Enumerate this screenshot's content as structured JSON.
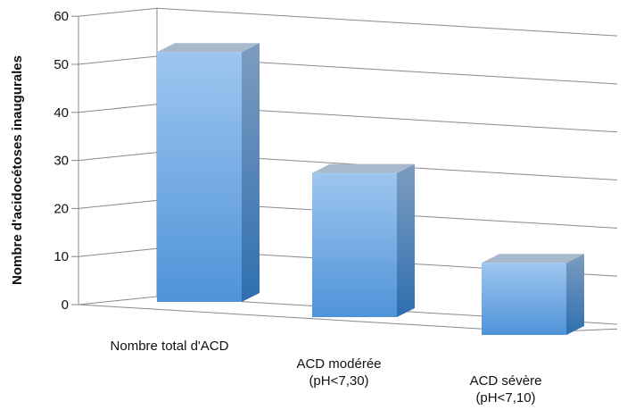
{
  "chart_data": {
    "type": "bar",
    "title": "",
    "xlabel": "",
    "ylabel": "Nombre d'acidocétoses inaugurales",
    "ylim": [
      0,
      60
    ],
    "yticks": [
      "0",
      "10",
      "20",
      "30",
      "40",
      "50",
      "60"
    ],
    "categories": [
      [
        "Nombre total d'ACD"
      ],
      [
        "ACD modérée",
        "(pH<7,30)"
      ],
      [
        "ACD sévère",
        "(pH<7,10)"
      ]
    ],
    "values": [
      52,
      30,
      15
    ],
    "grid": true,
    "style": "3d",
    "colors": {
      "bar_top": "#9ec6f0",
      "bar_bottom": "#4f93d8",
      "bar_side": "#2f6fb0",
      "grid": "#8a8a8a"
    }
  }
}
